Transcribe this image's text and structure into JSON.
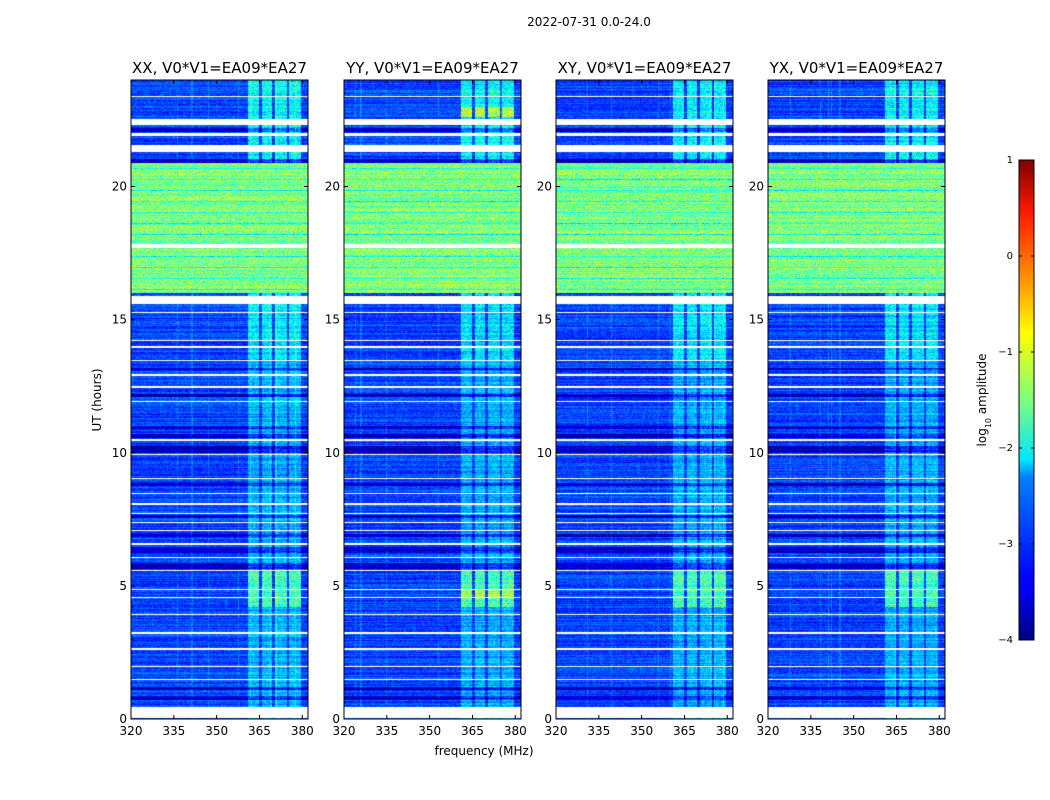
{
  "chart_data": {
    "type": "heatmap",
    "suptitle": "2022-07-31 0.0-24.0",
    "xlabel": "frequency (MHz)",
    "ylabel": "UT (hours)",
    "xlim": [
      320,
      382
    ],
    "ylim": [
      0,
      24
    ],
    "x_ticks": [
      320,
      335,
      350,
      365,
      380
    ],
    "y_ticks": [
      0,
      5,
      10,
      15,
      20
    ],
    "colorbar": {
      "label": "log",
      "label_sub": "10",
      "label_suffix": " amplitude",
      "range": [
        -4,
        1
      ],
      "ticks": [
        -4,
        -3,
        -2,
        -1,
        0,
        1
      ],
      "tick_labels": [
        "−4",
        "−3",
        "−2",
        "−1",
        "0",
        "1"
      ],
      "colormap": "jet"
    },
    "panels": [
      {
        "title": "XX, V0*V1=EA09*EA27",
        "polarization": "XX"
      },
      {
        "title": "YY, V0*V1=EA09*EA27",
        "polarization": "YY"
      },
      {
        "title": "XY, V0*V1=EA09*EA27",
        "polarization": "XY"
      },
      {
        "title": "YX, V0*V1=EA09*EA27",
        "polarization": "YX"
      }
    ],
    "rfi_band_mhz": [
      361,
      380
    ],
    "rfi_subbands_mhz": [
      [
        361,
        365
      ],
      [
        366,
        369.5
      ],
      [
        370.5,
        374.5
      ],
      [
        375.5,
        379.5
      ]
    ],
    "high_amplitude_ut": [
      [
        16.0,
        20.9
      ]
    ],
    "flagged_ut": [
      [
        0.05,
        0.45
      ],
      [
        1.45,
        1.5
      ],
      [
        1.95,
        2.0
      ],
      [
        2.6,
        2.65
      ],
      [
        3.2,
        3.25
      ],
      [
        3.9,
        3.95
      ],
      [
        4.55,
        4.6
      ],
      [
        4.85,
        4.9
      ],
      [
        5.55,
        5.6
      ],
      [
        6.05,
        6.1
      ],
      [
        6.55,
        6.6
      ],
      [
        7.05,
        7.1
      ],
      [
        7.35,
        7.4
      ],
      [
        7.7,
        7.75
      ],
      [
        8.05,
        8.1
      ],
      [
        8.45,
        8.5
      ],
      [
        9.0,
        9.05
      ],
      [
        9.9,
        9.95
      ],
      [
        10.45,
        10.5
      ],
      [
        11.9,
        11.95
      ],
      [
        12.45,
        12.5
      ],
      [
        12.9,
        12.95
      ],
      [
        13.45,
        13.5
      ],
      [
        13.95,
        14.0
      ],
      [
        14.2,
        14.25
      ],
      [
        15.25,
        15.3
      ],
      [
        15.6,
        15.9
      ],
      [
        17.7,
        17.85
      ],
      [
        21.3,
        21.55
      ],
      [
        21.9,
        22.0
      ],
      [
        22.3,
        22.55
      ],
      [
        23.35,
        23.4
      ]
    ],
    "dark_ut": [
      [
        0.7,
        0.85
      ],
      [
        1.1,
        1.2
      ],
      [
        5.65,
        5.85
      ],
      [
        6.25,
        6.45
      ],
      [
        6.85,
        6.95
      ],
      [
        7.55,
        7.65
      ],
      [
        8.75,
        8.85
      ],
      [
        10.0,
        10.25
      ],
      [
        10.55,
        10.7
      ],
      [
        10.9,
        11.0
      ],
      [
        12.1,
        12.2
      ],
      [
        13.1,
        13.2
      ],
      [
        20.9,
        21.05
      ],
      [
        22.05,
        22.2
      ]
    ],
    "data_presence": "non-flagged rows are valid"
  }
}
